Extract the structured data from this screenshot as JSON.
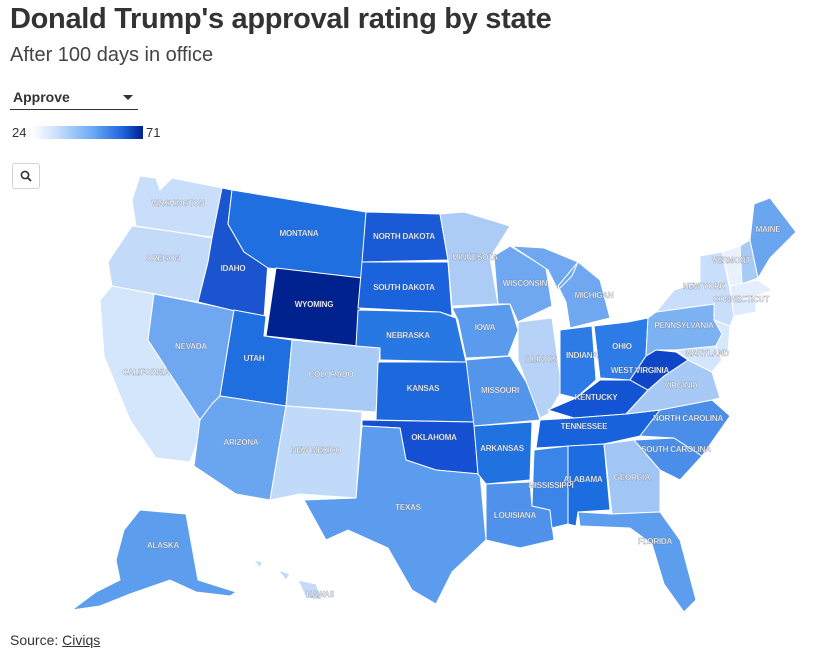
{
  "title": "Donald Trump's approval rating by state",
  "subtitle": "After 100 days in office",
  "dropdown": {
    "selected": "Approve"
  },
  "legend": {
    "min": "24",
    "max": "71"
  },
  "search": {
    "icon": "search-icon"
  },
  "source": {
    "prefix": "Source: ",
    "link_text": "Civiqs"
  },
  "colors": {
    "scale_low": "#ffffff",
    "scale_mid": "#6aa9f3",
    "scale_high": "#001f8f"
  },
  "states": {
    "WASHINGTON": "WASHINGTON",
    "OREGON": "OREGON",
    "CALIFORNIA": "CALIFORNIA",
    "NEVADA": "NEVADA",
    "IDAHO": "IDAHO",
    "MONTANA": "MONTANA",
    "WYOMING": "WYOMING",
    "UTAH": "UTAH",
    "ARIZONA": "ARIZONA",
    "COLORADO": "COLORADO",
    "NEW_MEXICO": "NEW MEXICO",
    "NORTH_DAKOTA": "NORTH DAKOTA",
    "SOUTH_DAKOTA": "SOUTH DAKOTA",
    "NEBRASKA": "NEBRASKA",
    "KANSAS": "KANSAS",
    "OKLAHOMA": "OKLAHOMA",
    "TEXAS": "TEXAS",
    "MINNESOTA": "MINNESOTA",
    "IOWA": "IOWA",
    "MISSOURI": "MISSOURI",
    "ARKANSAS": "ARKANSAS",
    "LOUISIANA": "LOUISIANA",
    "WISCONSIN": "WISCONSIN",
    "ILLINOIS": "ILLINOIS",
    "MICHIGAN": "MICHIGAN",
    "INDIANA": "INDIANA",
    "OHIO": "OHIO",
    "KENTUCKY": "KENTUCKY",
    "TENNESSEE": "TENNESSEE",
    "MISSISSIPPI": "MISSISSIPPI",
    "ALABAMA": "ALABAMA",
    "GEORGIA": "GEORGIA",
    "FLORIDA": "FLORIDA",
    "SOUTH_CAROLINA": "SOUTH CAROLINA",
    "NORTH_CAROLINA": "NORTH CAROLINA",
    "VIRGINIA": "VIRGINIA",
    "WEST_VIRGINIA": "WEST VIRGINIA",
    "MARYLAND": "MARYLAND",
    "PENNSYLVANIA": "PENNSYLVANIA",
    "NEW_YORK": "NEW YORK",
    "VERMONT": "VERMONT",
    "MAINE": "MAINE",
    "CONNECTICUT": "CONNECTICUT",
    "ALASKA": "ALASKA",
    "HAWAII": "HAWAII"
  }
}
